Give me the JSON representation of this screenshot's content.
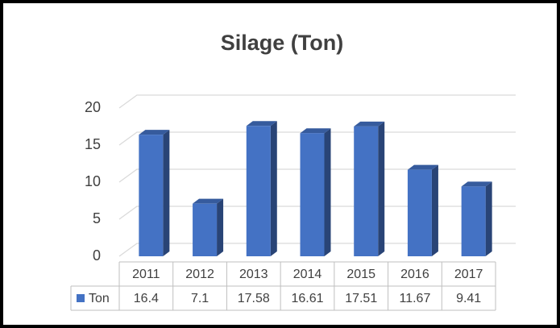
{
  "chart_data": {
    "type": "bar3d",
    "title": "Silage (Ton)",
    "categories": [
      "2011",
      "2012",
      "2013",
      "2014",
      "2015",
      "2016",
      "2017"
    ],
    "series": [
      {
        "name": "Ton",
        "color": "#4472c4",
        "values": [
          16.4,
          7.1,
          17.58,
          16.61,
          17.51,
          11.67,
          9.41
        ]
      }
    ],
    "ylim": [
      0,
      20
    ],
    "yticks": [
      0,
      5,
      10,
      15,
      20
    ],
    "grid": true,
    "data_table": true
  }
}
